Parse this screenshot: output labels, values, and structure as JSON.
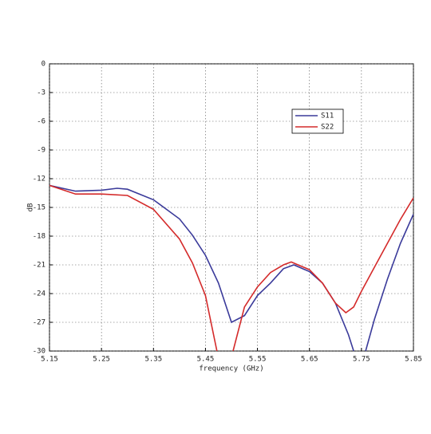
{
  "chart_data": {
    "type": "line",
    "xlabel": "frequency (GHz)",
    "ylabel": "dB",
    "xlim": [
      5.15,
      5.85
    ],
    "xticks": [
      5.15,
      5.25,
      5.35,
      5.45,
      5.55,
      5.65,
      5.75,
      5.85
    ],
    "ylim": [
      -30,
      0
    ],
    "yticks": [
      0,
      -3,
      -6,
      -9,
      -12,
      -15,
      -18,
      -21,
      -24,
      -27,
      -30
    ],
    "grid": true,
    "legend": "upper right",
    "series": [
      {
        "name": "S11",
        "color": "#3a3a9a",
        "x": [
          5.15,
          5.2,
          5.25,
          5.28,
          5.3,
          5.35,
          5.4,
          5.425,
          5.45,
          5.475,
          5.5,
          5.525,
          5.55,
          5.575,
          5.6,
          5.62,
          5.65,
          5.675,
          5.7,
          5.725,
          5.735,
          5.745,
          5.758,
          5.775,
          5.8,
          5.825,
          5.85
        ],
        "values": [
          -12.7,
          -13.3,
          -13.2,
          -13.0,
          -13.1,
          -14.2,
          -16.2,
          -17.9,
          -20,
          -22.9,
          -27.0,
          -26.3,
          -24.2,
          -22.9,
          -21.4,
          -21.0,
          -21.7,
          -22.9,
          -25,
          -28.3,
          -30,
          null,
          -30,
          -26.7,
          -22.5,
          -18.75,
          -15.7
        ]
      },
      {
        "name": "S22",
        "color": "#d42a2a",
        "x": [
          5.15,
          5.2,
          5.25,
          5.3,
          5.35,
          5.4,
          5.425,
          5.45,
          5.472,
          5.488,
          5.503,
          5.525,
          5.55,
          5.575,
          5.6,
          5.615,
          5.65,
          5.675,
          5.7,
          5.72,
          5.735,
          5.75,
          5.775,
          5.8,
          5.825,
          5.85
        ],
        "values": [
          -12.7,
          -13.6,
          -13.6,
          -13.75,
          -15.2,
          -18.3,
          -20.8,
          -24.2,
          -30,
          null,
          -30,
          -25.4,
          -23.3,
          -21.8,
          -21.0,
          -20.7,
          -21.5,
          -22.9,
          -25,
          -26,
          -25.4,
          -23.75,
          -21.25,
          -18.75,
          -16.25,
          -14
        ]
      }
    ]
  }
}
